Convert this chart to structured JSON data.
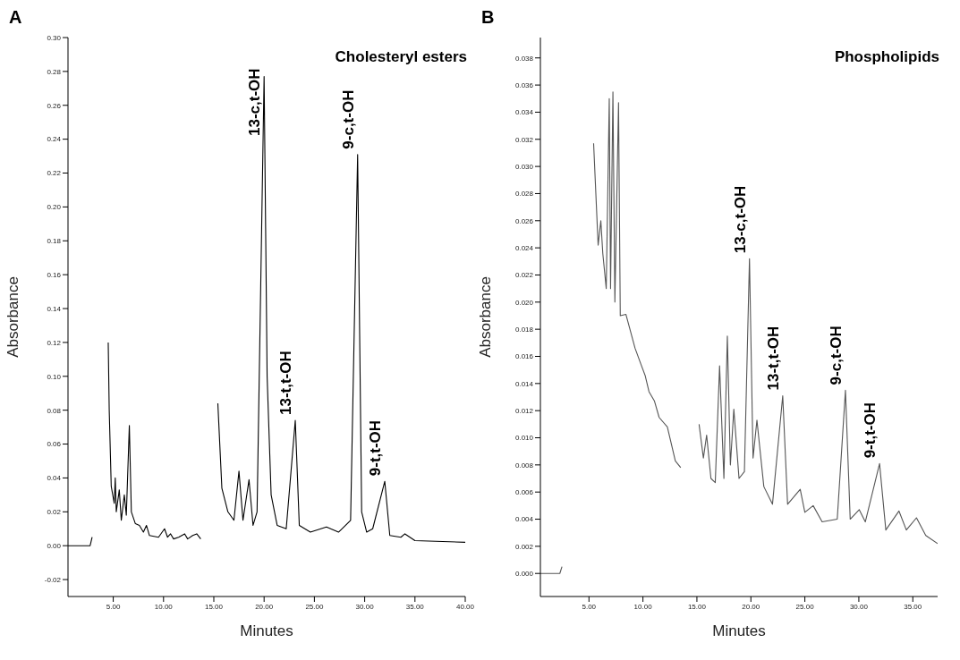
{
  "chart_data": [
    {
      "type": "line",
      "title": "A",
      "xlabel": "Minutes",
      "ylabel": "Absorbance",
      "color": "#000000",
      "x": [
        0.5,
        2.7,
        2.9,
        3.0,
        3.2,
        3.4,
        3.8,
        4.3,
        4.5,
        4.6,
        4.8,
        5.1,
        5.2,
        5.3,
        5.6,
        5.8,
        6.1,
        6.3,
        6.6,
        6.8,
        7.2,
        7.6,
        8.0,
        8.3,
        8.6,
        9.5,
        10.1,
        10.4,
        10.7,
        11.0,
        11.5,
        12.1,
        12.4,
        12.9,
        13.3,
        13.7,
        13.9,
        15.1,
        15.4,
        15.8,
        16.4,
        17.0,
        17.5,
        17.9,
        18.5,
        18.9,
        19.3,
        20.0,
        20.3,
        20.7,
        21.3,
        22.2,
        23.1,
        23.5,
        24.6,
        26.2,
        27.4,
        28.6,
        29.3,
        29.7,
        30.2,
        30.8,
        32.0,
        32.5,
        33.6,
        34.0,
        35.0,
        40.0
      ],
      "values": [
        0,
        0,
        0.005,
        null,
        null,
        null,
        null,
        null,
        0.12,
        0.08,
        0.035,
        0.025,
        0.04,
        0.02,
        0.033,
        0.015,
        0.03,
        0.018,
        0.071,
        0.02,
        0.013,
        0.012,
        0.008,
        0.012,
        0.006,
        0.005,
        0.01,
        0.005,
        0.007,
        0.004,
        0.005,
        0.007,
        0.004,
        0.006,
        0.007,
        0.004,
        null,
        null,
        0.084,
        0.034,
        0.02,
        0.015,
        0.044,
        0.015,
        0.039,
        0.012,
        0.02,
        0.277,
        0.1,
        0.03,
        0.012,
        0.01,
        0.074,
        0.012,
        0.008,
        0.011,
        0.008,
        0.015,
        0.231,
        0.02,
        0.008,
        0.01,
        0.038,
        0.006,
        0.005,
        0.007,
        0.003,
        0.002
      ],
      "xlim": [
        0.5,
        40
      ],
      "ylim": [
        -0.03,
        0.3
      ],
      "xticks": [
        {
          "value": 5,
          "label": "5.00"
        },
        {
          "value": 10,
          "label": "10.00"
        },
        {
          "value": 15,
          "label": "15.00"
        },
        {
          "value": 20,
          "label": "20.00"
        },
        {
          "value": 25,
          "label": "25.00"
        },
        {
          "value": 30,
          "label": "30.00"
        },
        {
          "value": 35,
          "label": "35.00"
        },
        {
          "value": 40,
          "label": "40.00"
        }
      ],
      "yticks": [
        -0.02,
        {
          "value": 0,
          "label": "0.00"
        },
        0.02,
        0.04,
        0.06,
        0.08,
        {
          "value": 0.1,
          "label": "0.10"
        },
        0.12,
        0.14,
        0.16,
        0.18,
        {
          "value": 0.2,
          "label": "0.20"
        },
        0.22,
        0.24,
        0.26,
        0.28,
        {
          "value": 0.3,
          "label": "0.30"
        }
      ],
      "annotations": [
        "Cholesteryl esters",
        {
          "text": "13-c,t-OH",
          "x": 20.0,
          "y": 0.277
        },
        {
          "text": "13-t,t-OH",
          "x": 23.1,
          "y": 0.074
        },
        {
          "text": "9-c,t-OH",
          "x": 29.3,
          "y": 0.231
        },
        {
          "text": "9-t,t-OH",
          "x": 32.0,
          "y": 0.038
        }
      ]
    },
    {
      "type": "line",
      "title": "B",
      "xlabel": "Minutes",
      "ylabel": "Absorbance",
      "color": "#555555",
      "x": [
        0.5,
        2.3,
        2.5,
        2.6,
        5.17,
        5.43,
        5.85,
        6.1,
        6.28,
        6.6,
        6.88,
        7.0,
        7.22,
        7.4,
        7.74,
        7.9,
        8.42,
        9.27,
        9.87,
        10.2,
        10.56,
        11.07,
        11.5,
        12.26,
        13.0,
        13.5,
        13.6,
        14.8,
        15.2,
        15.6,
        15.9,
        16.3,
        16.7,
        17.1,
        17.5,
        17.82,
        18.1,
        18.42,
        18.9,
        19.4,
        19.87,
        20.2,
        20.56,
        21.2,
        22.0,
        22.95,
        23.4,
        24.57,
        25.0,
        25.77,
        26.6,
        28.0,
        28.76,
        29.2,
        30.04,
        30.6,
        31.92,
        32.5,
        33.72,
        34.4,
        35.34,
        36.2,
        37.3
      ],
      "values": [
        0,
        0,
        0.0005,
        null,
        null,
        0.0317,
        0.0242,
        0.026,
        0.0236,
        0.021,
        0.035,
        0.021,
        0.0355,
        0.02,
        0.0347,
        0.019,
        0.0191,
        0.0166,
        0.0153,
        0.0146,
        0.0134,
        0.0127,
        0.0115,
        0.0108,
        0.0083,
        0.0078,
        null,
        null,
        0.011,
        0.0085,
        0.0102,
        0.007,
        0.0067,
        0.0153,
        0.007,
        0.0175,
        0.008,
        0.0121,
        0.007,
        0.0075,
        0.0232,
        0.0085,
        0.0113,
        0.0064,
        0.0051,
        0.0131,
        0.0051,
        0.0062,
        0.0045,
        0.005,
        0.0038,
        0.004,
        0.0135,
        0.004,
        0.0047,
        0.0038,
        0.0081,
        0.0032,
        0.0046,
        0.0032,
        0.0041,
        0.0028,
        0.0022
      ],
      "xlim": [
        0.5,
        37.3
      ],
      "ylim": [
        -0.0017,
        0.0395
      ],
      "xticks": [
        {
          "value": 5,
          "label": "5.00"
        },
        {
          "value": 10,
          "label": "10.00"
        },
        {
          "value": 15,
          "label": "15.00"
        },
        {
          "value": 20,
          "label": "20.00"
        },
        {
          "value": 25,
          "label": "25.00"
        },
        {
          "value": 30,
          "label": "30.00"
        },
        {
          "value": 35,
          "label": "35.00"
        }
      ],
      "yticks": [
        {
          "value": 0,
          "label": "0.000"
        },
        0.002,
        0.004,
        0.006,
        0.008,
        {
          "value": 0.01,
          "label": "0.010"
        },
        0.012,
        0.014,
        0.016,
        0.018,
        {
          "value": 0.02,
          "label": "0.020"
        },
        0.022,
        0.024,
        0.026,
        0.028,
        {
          "value": 0.03,
          "label": "0.030"
        },
        0.032,
        0.034,
        0.036,
        0.038
      ],
      "annotations": [
        "Phospholipids",
        {
          "text": "13-c,t-OH",
          "x": 19.87,
          "y": 0.0232
        },
        {
          "text": "13-t,t-OH",
          "x": 22.95,
          "y": 0.0131
        },
        {
          "text": "9-c,t-OH",
          "x": 28.76,
          "y": 0.0135
        },
        {
          "text": "9-t,t-OH",
          "x": 31.92,
          "y": 0.0081
        }
      ]
    }
  ]
}
